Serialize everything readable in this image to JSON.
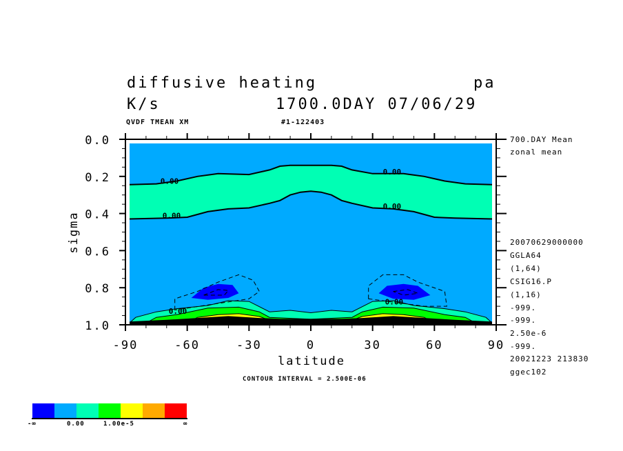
{
  "header": {
    "title": "diffusive heating",
    "level_label": "pa",
    "units": "K/s",
    "time_label": "1700.0DAY 07/06/29",
    "variable_line": "QVDF TMEAN XM",
    "run_id": "#1-122403"
  },
  "side_info": [
    "700.DAY Mean",
    "zonal mean",
    "20070629000000",
    "GGLA64",
    "(1,64)",
    "CSIG16.P",
    "(1,16)",
    "-999.",
    "-999.",
    "2.50e-6",
    "-999.",
    "20021223 213830",
    "ggec102"
  ],
  "footer": {
    "contour_interval": "CONTOUR INTERVAL = 2.500E-06"
  },
  "colorbar": {
    "colors": [
      "#0000FF",
      "#00AAFF",
      "#00FFB4",
      "#00FF00",
      "#FFFF00",
      "#FFAA00",
      "#FF0000"
    ],
    "labels": [
      "-∞",
      "0.00",
      "1.00e-5",
      "∞"
    ]
  },
  "chart_data": {
    "type": "contour",
    "title": "diffusive heating",
    "xlabel": "latitude",
    "ylabel": "sigma",
    "xlim": [
      -90,
      90
    ],
    "ylim": [
      0.0,
      1.0
    ],
    "x_ticks": [
      "-90",
      "-60",
      "-30",
      "0",
      "30",
      "60",
      "90"
    ],
    "y_ticks": [
      "0.0",
      "0.2",
      "0.4",
      "0.6",
      "0.8",
      "1.0"
    ],
    "contour_interval": 2.5e-06,
    "background_color": "#00AAFF",
    "zero_upper": [
      [
        -90,
        0.245
      ],
      [
        -75,
        0.24
      ],
      [
        -65,
        0.225
      ],
      [
        -55,
        0.2
      ],
      [
        -45,
        0.185
      ],
      [
        -30,
        0.19
      ],
      [
        -20,
        0.165
      ],
      [
        -15,
        0.145
      ],
      [
        -10,
        0.14
      ],
      [
        10,
        0.14
      ],
      [
        15,
        0.145
      ],
      [
        20,
        0.165
      ],
      [
        30,
        0.185
      ],
      [
        45,
        0.185
      ],
      [
        55,
        0.2
      ],
      [
        65,
        0.225
      ],
      [
        75,
        0.24
      ],
      [
        90,
        0.245
      ]
    ],
    "zero_lower": [
      [
        -90,
        0.43
      ],
      [
        -70,
        0.425
      ],
      [
        -60,
        0.42
      ],
      [
        -50,
        0.39
      ],
      [
        -40,
        0.375
      ],
      [
        -30,
        0.37
      ],
      [
        -20,
        0.345
      ],
      [
        -15,
        0.33
      ],
      [
        -10,
        0.3
      ],
      [
        -5,
        0.285
      ],
      [
        0,
        0.28
      ],
      [
        5,
        0.285
      ],
      [
        10,
        0.3
      ],
      [
        15,
        0.33
      ],
      [
        20,
        0.345
      ],
      [
        30,
        0.37
      ],
      [
        40,
        0.375
      ],
      [
        50,
        0.39
      ],
      [
        60,
        0.42
      ],
      [
        70,
        0.425
      ],
      [
        90,
        0.43
      ]
    ],
    "surface_layers": [
      {
        "color": "#00FFB4",
        "top": [
          [
            -88,
            0.99
          ],
          [
            -85,
            0.96
          ],
          [
            -75,
            0.93
          ],
          [
            -65,
            0.913
          ],
          [
            -50,
            0.896
          ],
          [
            -40,
            0.87
          ],
          [
            -30,
            0.874
          ],
          [
            -20,
            0.93
          ],
          [
            -10,
            0.922
          ],
          [
            0,
            0.935
          ],
          [
            10,
            0.922
          ],
          [
            20,
            0.93
          ],
          [
            30,
            0.874
          ],
          [
            40,
            0.87
          ],
          [
            50,
            0.896
          ],
          [
            65,
            0.913
          ],
          [
            75,
            0.93
          ],
          [
            85,
            0.96
          ],
          [
            88,
            0.99
          ]
        ]
      },
      {
        "color": "#00FF00",
        "top": [
          [
            -80,
            0.99
          ],
          [
            -75,
            0.96
          ],
          [
            -65,
            0.945
          ],
          [
            -50,
            0.91
          ],
          [
            -35,
            0.905
          ],
          [
            -25,
            0.93
          ],
          [
            -20,
            0.96
          ],
          [
            0,
            0.97
          ],
          [
            20,
            0.96
          ],
          [
            25,
            0.93
          ],
          [
            35,
            0.905
          ],
          [
            50,
            0.91
          ],
          [
            65,
            0.945
          ],
          [
            75,
            0.96
          ],
          [
            80,
            0.99
          ]
        ]
      },
      {
        "color": "#FFFF00",
        "top": [
          [
            -60,
            0.99
          ],
          [
            -55,
            0.96
          ],
          [
            -45,
            0.945
          ],
          [
            -35,
            0.94
          ],
          [
            -25,
            0.955
          ],
          [
            -20,
            0.975
          ],
          [
            20,
            0.975
          ],
          [
            25,
            0.955
          ],
          [
            35,
            0.94
          ],
          [
            45,
            0.945
          ],
          [
            55,
            0.96
          ],
          [
            60,
            0.99
          ]
        ]
      },
      {
        "color": "#000000",
        "top": [
          [
            -90,
            0.985
          ],
          [
            -70,
            0.975
          ],
          [
            -55,
            0.965
          ],
          [
            -40,
            0.955
          ],
          [
            -25,
            0.965
          ],
          [
            -15,
            0.97
          ],
          [
            15,
            0.97
          ],
          [
            25,
            0.965
          ],
          [
            40,
            0.955
          ],
          [
            55,
            0.965
          ],
          [
            70,
            0.975
          ],
          [
            90,
            0.985
          ]
        ]
      }
    ],
    "negative_regions": [
      {
        "color": "#0000FF",
        "points": [
          [
            -58,
            0.855
          ],
          [
            -52,
            0.8
          ],
          [
            -45,
            0.78
          ],
          [
            -38,
            0.785
          ],
          [
            -35,
            0.83
          ],
          [
            -40,
            0.855
          ],
          [
            -50,
            0.865
          ]
        ]
      },
      {
        "color": "#0000FF",
        "points": [
          [
            33,
            0.83
          ],
          [
            37,
            0.79
          ],
          [
            45,
            0.78
          ],
          [
            52,
            0.79
          ],
          [
            58,
            0.84
          ],
          [
            50,
            0.865
          ],
          [
            40,
            0.86
          ]
        ]
      }
    ],
    "dashed_contours": [
      [
        [
          -66,
          0.92
        ],
        [
          -66,
          0.86
        ],
        [
          -55,
          0.82
        ],
        [
          -45,
          0.77
        ],
        [
          -35,
          0.73
        ],
        [
          -28,
          0.76
        ],
        [
          -25,
          0.82
        ],
        [
          -30,
          0.86
        ]
      ],
      [
        [
          28,
          0.86
        ],
        [
          28,
          0.79
        ],
        [
          35,
          0.73
        ],
        [
          45,
          0.73
        ],
        [
          52,
          0.77
        ],
        [
          65,
          0.82
        ],
        [
          66,
          0.9
        ],
        [
          55,
          0.9
        ]
      ],
      [
        [
          -52,
          0.84
        ],
        [
          -45,
          0.81
        ],
        [
          -40,
          0.815
        ],
        [
          -42,
          0.84
        ]
      ],
      [
        [
          40,
          0.82
        ],
        [
          47,
          0.81
        ],
        [
          52,
          0.83
        ],
        [
          45,
          0.84
        ]
      ]
    ],
    "contour_labels": [
      {
        "text": "0.00",
        "lat": -73,
        "sigma": 0.225
      },
      {
        "text": "0.00",
        "lat": 35,
        "sigma": 0.175
      },
      {
        "text": "0.00",
        "lat": -72,
        "sigma": 0.41
      },
      {
        "text": "0.00",
        "lat": 35,
        "sigma": 0.36
      },
      {
        "text": "0.00",
        "lat": -69,
        "sigma": 0.925
      },
      {
        "text": "0.00",
        "lat": 36,
        "sigma": 0.875
      }
    ]
  }
}
